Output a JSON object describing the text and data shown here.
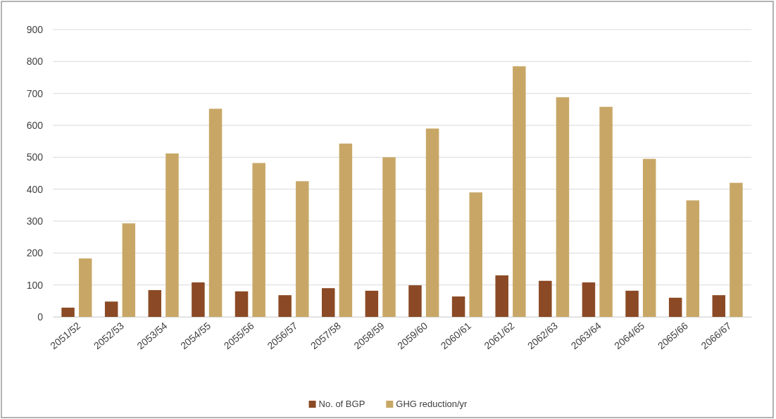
{
  "chart_data": {
    "type": "bar",
    "categories": [
      "2051/52",
      "2052/53",
      "2053/54",
      "2054/55",
      "2055/56",
      "2056/57",
      "2057/58",
      "2058/59",
      "2059/60",
      "2060/61",
      "2061/62",
      "2062/63",
      "2063/64",
      "2064/65",
      "2065/66",
      "2066/67"
    ],
    "series": [
      {
        "name": "No. of BGP",
        "color": "#8b4a25",
        "values": [
          29,
          48,
          84,
          108,
          80,
          68,
          90,
          82,
          99,
          64,
          130,
          113,
          108,
          82,
          60,
          68
        ]
      },
      {
        "name": "GHG reduction/yr",
        "color": "#c8a766",
        "values": [
          183,
          293,
          512,
          652,
          482,
          425,
          543,
          500,
          590,
          390,
          785,
          688,
          658,
          495,
          365,
          420
        ]
      }
    ],
    "ylim": [
      0,
      900
    ],
    "yticks": [
      0,
      100,
      200,
      300,
      400,
      500,
      600,
      700,
      800,
      900
    ],
    "grid": "y",
    "legend": "bottom"
  }
}
